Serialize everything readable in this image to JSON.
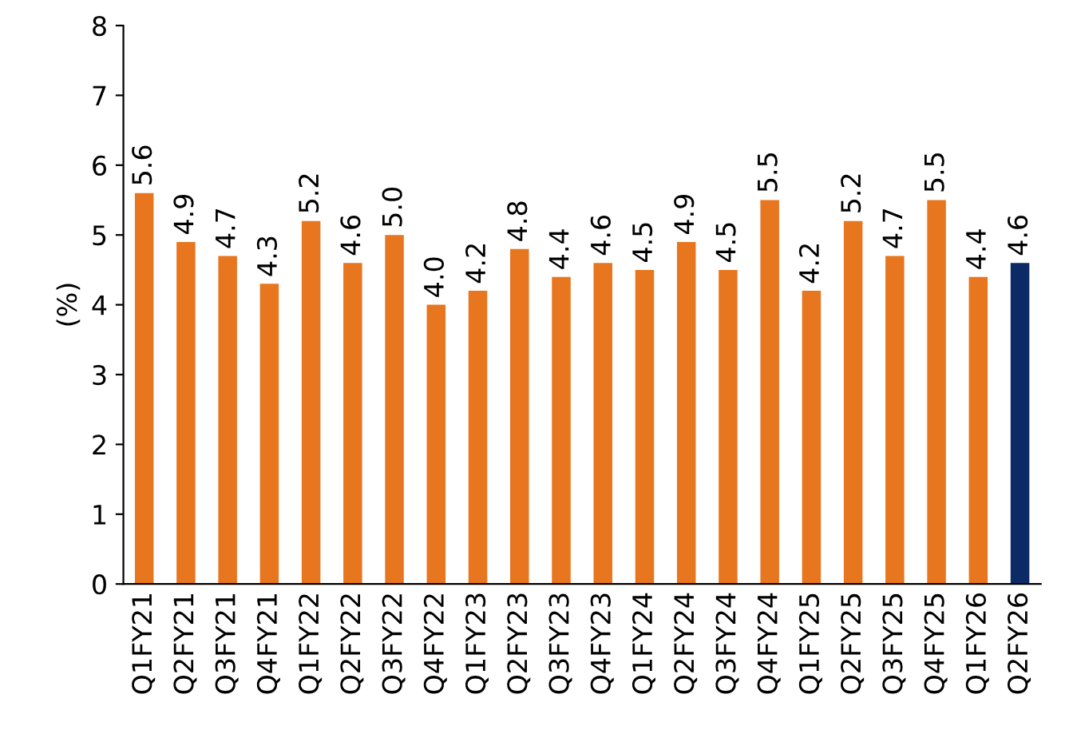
{
  "chart_data": {
    "type": "bar",
    "ylabel": "(%)",
    "categories": [
      "Q1FY21",
      "Q2FY21",
      "Q3FY21",
      "Q4FY21",
      "Q1FY22",
      "Q2FY22",
      "Q3FY22",
      "Q4FY22",
      "Q1FY23",
      "Q2FY23",
      "Q3FY23",
      "Q4FY23",
      "Q1FY24",
      "Q2FY24",
      "Q3FY24",
      "Q4FY24",
      "Q1FY25",
      "Q2FY25",
      "Q3FY25",
      "Q4FY25",
      "Q1FY26",
      "Q2FY26"
    ],
    "values": [
      5.6,
      4.9,
      4.7,
      4.3,
      5.2,
      4.6,
      5.0,
      4.0,
      4.2,
      4.8,
      4.4,
      4.6,
      4.5,
      4.9,
      4.5,
      5.5,
      4.2,
      5.2,
      4.7,
      5.5,
      4.4,
      4.6
    ],
    "value_labels": [
      "5.6",
      "4.9",
      "4.7",
      "4.3",
      "5.2",
      "4.6",
      "5.0",
      "4.0",
      "4.2",
      "4.8",
      "4.4",
      "4.6",
      "4.5",
      "4.9",
      "4.5",
      "5.5",
      "4.2",
      "5.2",
      "4.7",
      "5.5",
      "4.4",
      "4.6"
    ],
    "colors": [
      "#e8761e",
      "#e8761e",
      "#e8761e",
      "#e8761e",
      "#e8761e",
      "#e8761e",
      "#e8761e",
      "#e8761e",
      "#e8761e",
      "#e8761e",
      "#e8761e",
      "#e8761e",
      "#e8761e",
      "#e8761e",
      "#e8761e",
      "#e8761e",
      "#e8761e",
      "#e8761e",
      "#e8761e",
      "#e8761e",
      "#e8761e",
      "#0b2a66"
    ],
    "ylim": [
      0,
      8
    ],
    "yticks": [
      0,
      1,
      2,
      3,
      4,
      5,
      6,
      7,
      8
    ],
    "grid": false,
    "legend": false
  }
}
